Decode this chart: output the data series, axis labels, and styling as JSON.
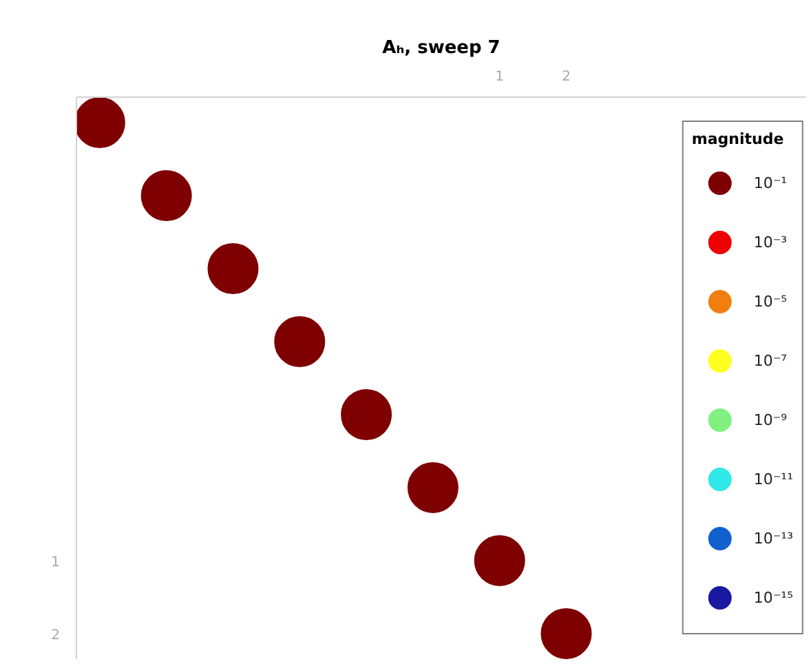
{
  "chart_data": {
    "type": "scatter",
    "title": "Aₕ, sweep 7",
    "legend_title": "magnitude",
    "x": [
      -5,
      -4,
      -3,
      -2,
      -1,
      0,
      1,
      2
    ],
    "xlim": [
      -5.35,
      5.6
    ],
    "ylim": [
      2.35,
      -5.35
    ],
    "xticks": [
      1,
      2
    ],
    "yticks": [
      1,
      2
    ],
    "grid": false,
    "legend": "right",
    "marker": "circle",
    "series": [
      {
        "name": "10⁻¹",
        "color": "#7f0000",
        "values": [
          -5,
          -4,
          -3,
          -2,
          -1,
          0,
          1,
          2
        ]
      },
      {
        "name": "10⁻³",
        "color": "#ee0000",
        "values": [
          null,
          null,
          null,
          null,
          null,
          null,
          null,
          null
        ]
      },
      {
        "name": "10⁻⁵",
        "color": "#f07f10",
        "values": [
          null,
          null,
          null,
          null,
          null,
          null,
          null,
          null
        ]
      },
      {
        "name": "10⁻⁷",
        "color": "#ffff20",
        "values": [
          null,
          null,
          null,
          null,
          null,
          null,
          null,
          null
        ]
      },
      {
        "name": "10⁻⁹",
        "color": "#80f080",
        "values": [
          null,
          null,
          null,
          null,
          null,
          null,
          null,
          null
        ]
      },
      {
        "name": "10⁻¹¹",
        "color": "#30e8e8",
        "values": [
          null,
          null,
          null,
          null,
          null,
          null,
          null,
          null
        ]
      },
      {
        "name": "10⁻¹³",
        "color": "#1060d0",
        "values": [
          null,
          null,
          null,
          null,
          null,
          null,
          null,
          null
        ]
      },
      {
        "name": "10⁻¹⁵",
        "color": "#1818a0",
        "values": [
          null,
          null,
          null,
          null,
          null,
          null,
          null,
          null
        ]
      }
    ]
  }
}
